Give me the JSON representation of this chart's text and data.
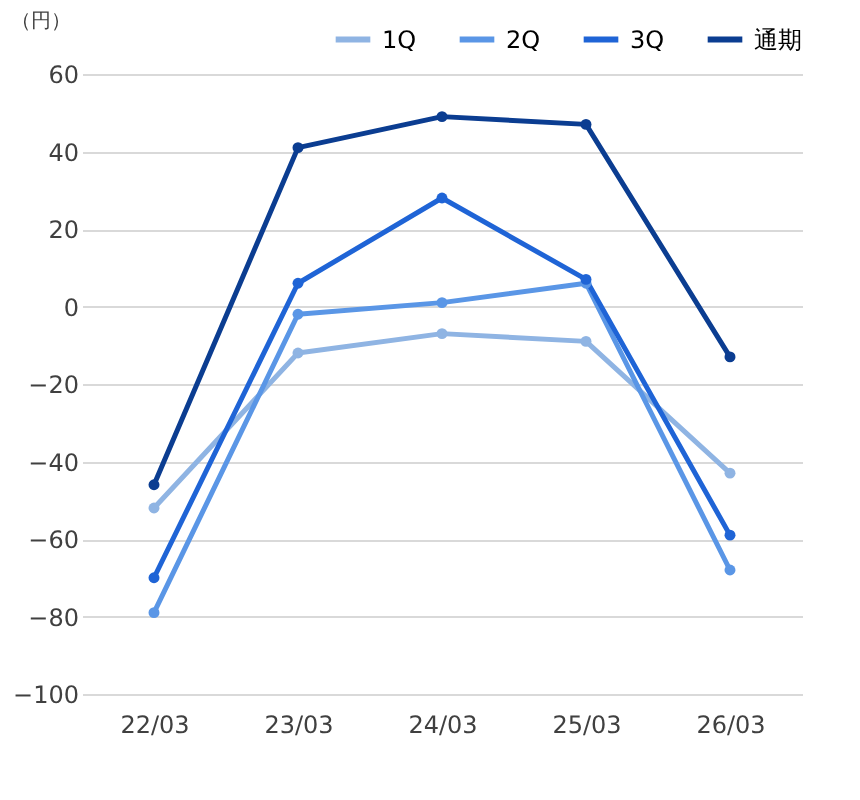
{
  "chart_data": {
    "type": "line",
    "ylabel": "（円）",
    "categories": [
      "22/03",
      "23/03",
      "24/03",
      "25/03",
      "26/03"
    ],
    "series": [
      {
        "name": "1Q",
        "color": "#8fb4e3",
        "values": [
          -52,
          -12,
          -7,
          -9,
          -43
        ]
      },
      {
        "name": "2Q",
        "color": "#5a96e6",
        "values": [
          -79,
          -2,
          1,
          6,
          -68
        ]
      },
      {
        "name": "3Q",
        "color": "#1f64d6",
        "values": [
          -70,
          6,
          28,
          7,
          -59
        ]
      },
      {
        "name": "通期",
        "color": "#0b3d91",
        "values": [
          -46,
          41,
          49,
          47,
          -13
        ]
      }
    ],
    "ylim": [
      -100,
      60
    ],
    "yticks": [
      -100,
      -80,
      -60,
      -40,
      -20,
      0,
      20,
      40,
      60
    ],
    "grid": "y",
    "legend": "top right",
    "marker": "circle",
    "line_style": "solid"
  }
}
